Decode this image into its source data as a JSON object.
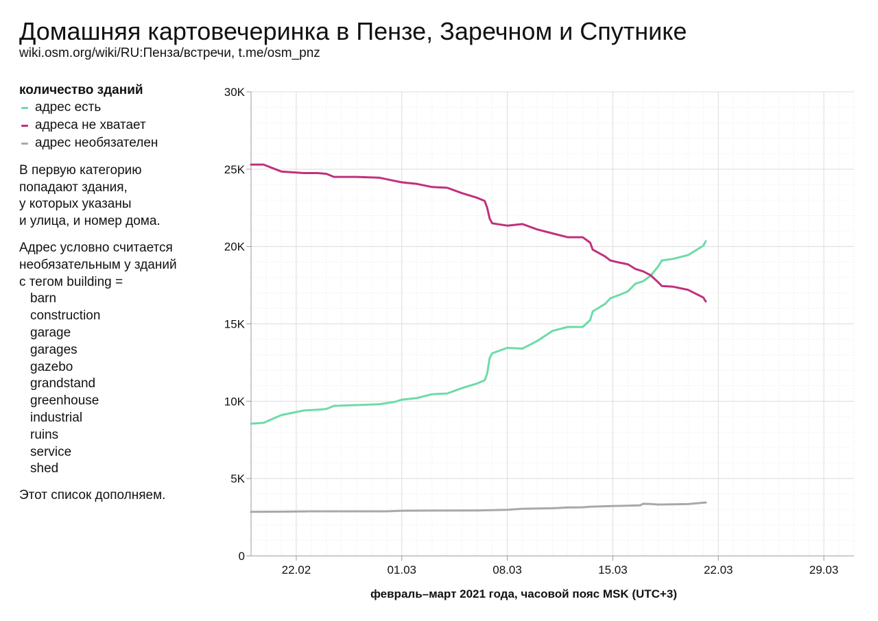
{
  "header": {
    "title": "Домашняя картовечеринка в Пензе, Заречном и Спутнике",
    "subtitle": "wiki.osm.org/wiki/RU:Пенза/встречи, t.me/osm_pnz"
  },
  "sidebar": {
    "legend_title": "количество зданий",
    "description": [
      "В первую категорию",
      "попадают здания,",
      "у которых указаны",
      "и улица, и номер дома."
    ],
    "optional_intro": [
      "Адрес условно считается",
      "необязательным у зданий",
      "с тегом building ="
    ],
    "building_tags": [
      "barn",
      "construction",
      "garage",
      "garages",
      "gazebo",
      "grandstand",
      "greenhouse",
      "industrial",
      "ruins",
      "service",
      "shed"
    ],
    "footer": "Этот список дополняем."
  },
  "chart_data": {
    "type": "line",
    "xlabel": "февраль–март 2021 года, часовой пояс MSK (UTC+3)",
    "ylabel": "",
    "x_range": [
      "2021-02-19",
      "2021-03-31"
    ],
    "ylim": [
      0,
      30000
    ],
    "x_ticks": [
      {
        "date": "2021-02-22",
        "label": "22.02"
      },
      {
        "date": "2021-03-01",
        "label": "01.03"
      },
      {
        "date": "2021-03-08",
        "label": "08.03"
      },
      {
        "date": "2021-03-15",
        "label": "15.03"
      },
      {
        "date": "2021-03-22",
        "label": "22.03"
      },
      {
        "date": "2021-03-29",
        "label": "29.03"
      }
    ],
    "y_ticks": [
      {
        "value": 0,
        "label": "0"
      },
      {
        "value": 5000,
        "label": "5K"
      },
      {
        "value": 10000,
        "label": "10K"
      },
      {
        "value": 15000,
        "label": "15K"
      },
      {
        "value": 20000,
        "label": "20K"
      },
      {
        "value": 25000,
        "label": "25K"
      },
      {
        "value": 30000,
        "label": "30K"
      }
    ],
    "grid": true,
    "legend_position": "left",
    "series": [
      {
        "name": "адрес есть",
        "color": "#6ddba7",
        "points": [
          [
            "2021-02-19T00:00",
            8550
          ],
          [
            "2021-02-19T20:00",
            8600
          ],
          [
            "2021-02-21T00:00",
            9100
          ],
          [
            "2021-02-22T12:00",
            9400
          ],
          [
            "2021-02-23T10:00",
            9450
          ],
          [
            "2021-02-24T00:00",
            9500
          ],
          [
            "2021-02-24T12:00",
            9700
          ],
          [
            "2021-02-26T00:00",
            9750
          ],
          [
            "2021-02-27T12:00",
            9800
          ],
          [
            "2021-02-28T12:00",
            9950
          ],
          [
            "2021-03-01T00:00",
            10100
          ],
          [
            "2021-03-02T00:00",
            10200
          ],
          [
            "2021-03-03T00:00",
            10450
          ],
          [
            "2021-03-04T00:00",
            10500
          ],
          [
            "2021-03-05T00:00",
            10850
          ],
          [
            "2021-03-06T00:00",
            11150
          ],
          [
            "2021-03-06T12:00",
            11350
          ],
          [
            "2021-03-06T16:00",
            11800
          ],
          [
            "2021-03-06T20:00",
            12800
          ],
          [
            "2021-03-07T00:00",
            13100
          ],
          [
            "2021-03-08T00:00",
            13450
          ],
          [
            "2021-03-09T00:00",
            13400
          ],
          [
            "2021-03-10T00:00",
            13900
          ],
          [
            "2021-03-11T00:00",
            14550
          ],
          [
            "2021-03-12T00:00",
            14800
          ],
          [
            "2021-03-13T00:00",
            14800
          ],
          [
            "2021-03-13T12:00",
            15250
          ],
          [
            "2021-03-13T16:00",
            15800
          ],
          [
            "2021-03-14T12:00",
            16300
          ],
          [
            "2021-03-14T20:00",
            16650
          ],
          [
            "2021-03-15T12:00",
            16900
          ],
          [
            "2021-03-16T00:00",
            17100
          ],
          [
            "2021-03-16T12:00",
            17600
          ],
          [
            "2021-03-17T00:00",
            17750
          ],
          [
            "2021-03-17T12:00",
            18100
          ],
          [
            "2021-03-18T00:00",
            18700
          ],
          [
            "2021-03-18T06:00",
            19100
          ],
          [
            "2021-03-19T00:00",
            19200
          ],
          [
            "2021-03-20T00:00",
            19450
          ],
          [
            "2021-03-21T00:00",
            20050
          ],
          [
            "2021-03-21T04:00",
            20350
          ]
        ]
      },
      {
        "name": "адреса не хватает",
        "color": "#c0307a",
        "points": [
          [
            "2021-02-19T00:00",
            25300
          ],
          [
            "2021-02-19T20:00",
            25300
          ],
          [
            "2021-02-21T00:00",
            24850
          ],
          [
            "2021-02-22T12:00",
            24750
          ],
          [
            "2021-02-23T10:00",
            24750
          ],
          [
            "2021-02-24T00:00",
            24700
          ],
          [
            "2021-02-24T12:00",
            24500
          ],
          [
            "2021-02-26T00:00",
            24500
          ],
          [
            "2021-02-27T12:00",
            24450
          ],
          [
            "2021-02-28T12:00",
            24250
          ],
          [
            "2021-03-01T00:00",
            24150
          ],
          [
            "2021-03-02T00:00",
            24050
          ],
          [
            "2021-03-03T00:00",
            23850
          ],
          [
            "2021-03-04T00:00",
            23800
          ],
          [
            "2021-03-05T00:00",
            23450
          ],
          [
            "2021-03-06T00:00",
            23150
          ],
          [
            "2021-03-06T12:00",
            22950
          ],
          [
            "2021-03-06T16:00",
            22500
          ],
          [
            "2021-03-06T20:00",
            21800
          ],
          [
            "2021-03-07T00:00",
            21500
          ],
          [
            "2021-03-08T00:00",
            21350
          ],
          [
            "2021-03-09T00:00",
            21450
          ],
          [
            "2021-03-10T00:00",
            21100
          ],
          [
            "2021-03-11T00:00",
            20850
          ],
          [
            "2021-03-12T00:00",
            20600
          ],
          [
            "2021-03-13T00:00",
            20600
          ],
          [
            "2021-03-13T12:00",
            20250
          ],
          [
            "2021-03-13T16:00",
            19800
          ],
          [
            "2021-03-14T12:00",
            19350
          ],
          [
            "2021-03-14T20:00",
            19100
          ],
          [
            "2021-03-15T12:00",
            18950
          ],
          [
            "2021-03-16T00:00",
            18850
          ],
          [
            "2021-03-16T12:00",
            18550
          ],
          [
            "2021-03-17T00:00",
            18400
          ],
          [
            "2021-03-17T12:00",
            18150
          ],
          [
            "2021-03-18T00:00",
            17700
          ],
          [
            "2021-03-18T06:00",
            17450
          ],
          [
            "2021-03-19T00:00",
            17400
          ],
          [
            "2021-03-20T00:00",
            17200
          ],
          [
            "2021-03-21T00:00",
            16700
          ],
          [
            "2021-03-21T04:00",
            16450
          ]
        ]
      },
      {
        "name": "адрес необязателен",
        "color": "#a8a8a8",
        "points": [
          [
            "2021-02-19T00:00",
            2850
          ],
          [
            "2021-02-21T00:00",
            2860
          ],
          [
            "2021-02-23T00:00",
            2880
          ],
          [
            "2021-02-25T00:00",
            2880
          ],
          [
            "2021-02-28T00:00",
            2880
          ],
          [
            "2021-03-01T00:00",
            2920
          ],
          [
            "2021-03-03T00:00",
            2930
          ],
          [
            "2021-03-06T00:00",
            2940
          ],
          [
            "2021-03-08T00:00",
            2980
          ],
          [
            "2021-03-09T00:00",
            3050
          ],
          [
            "2021-03-11T00:00",
            3080
          ],
          [
            "2021-03-12T00:00",
            3130
          ],
          [
            "2021-03-13T00:00",
            3140
          ],
          [
            "2021-03-13T12:00",
            3180
          ],
          [
            "2021-03-15T00:00",
            3220
          ],
          [
            "2021-03-16T00:00",
            3250
          ],
          [
            "2021-03-16T20:00",
            3270
          ],
          [
            "2021-03-17T00:00",
            3370
          ],
          [
            "2021-03-17T12:00",
            3360
          ],
          [
            "2021-03-18T00:00",
            3320
          ],
          [
            "2021-03-20T00:00",
            3350
          ],
          [
            "2021-03-21T04:00",
            3450
          ]
        ]
      }
    ]
  }
}
